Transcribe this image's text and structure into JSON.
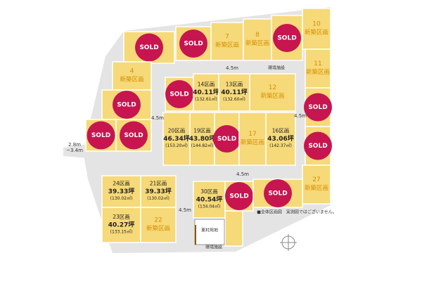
{
  "lots": [
    {
      "label": "SOLD"
    },
    {
      "label": "SOLD"
    },
    {
      "number": "7",
      "label": "新築区画"
    },
    {
      "number": "8",
      "label": "新築区画"
    },
    {
      "label": "SOLD"
    },
    {
      "number": "10",
      "label": "新築区画"
    },
    {
      "number": "11",
      "label": "新築区画"
    },
    {
      "label": "SOLD"
    },
    {
      "label": "SOLD"
    },
    {
      "number": "27",
      "label": "新築区画"
    },
    {
      "number": "4",
      "label": "新築区画"
    },
    {
      "label": "SOLD"
    },
    {
      "label": "SOLD"
    },
    {
      "label": "SOLD"
    },
    {
      "label": "SOLD"
    },
    {
      "number": "14区画",
      "tsubo": "40.11坪",
      "area": "(132.61㎡)"
    },
    {
      "number": "13区画",
      "tsubo": "40.11坪",
      "area": "(132.60㎡)"
    },
    {
      "number": "12",
      "label": "新築区画"
    },
    {
      "number": "20区画",
      "tsubo": "46.34坪",
      "area": "(153.20㎡)"
    },
    {
      "number": "19区画",
      "tsubo": "43.80坪",
      "area": "(144.82㎡)"
    },
    {
      "label": "SOLD"
    },
    {
      "number": "17",
      "label": "新築区画"
    },
    {
      "number": "16区画",
      "tsubo": "43.06坪",
      "area": "(142.37㎡)"
    },
    {
      "number": "24区画",
      "tsubo": "39.33坪",
      "area": "(130.02㎡)"
    },
    {
      "number": "21区画",
      "tsubo": "39.33坪",
      "area": "(130.02㎡)"
    },
    {
      "number": "23区画",
      "tsubo": "40.27坪",
      "area": "(133.15㎡)"
    },
    {
      "number": "22",
      "label": "新築区画"
    },
    {
      "number": "30区画",
      "tsubo": "40.54坪",
      "area": "(134.04㎡)"
    },
    {
      "label": "SOLD"
    },
    {
      "label": "SOLD"
    }
  ],
  "roads": [
    "4.5m",
    "4.5m",
    "4.5m",
    "4.5m",
    "4.5m",
    "2.8m",
    "~3.4m"
  ],
  "facilities": [
    "環境施設",
    "環境施設",
    "東村用地"
  ],
  "note": "■全体区画図　実測図ではございません。"
}
